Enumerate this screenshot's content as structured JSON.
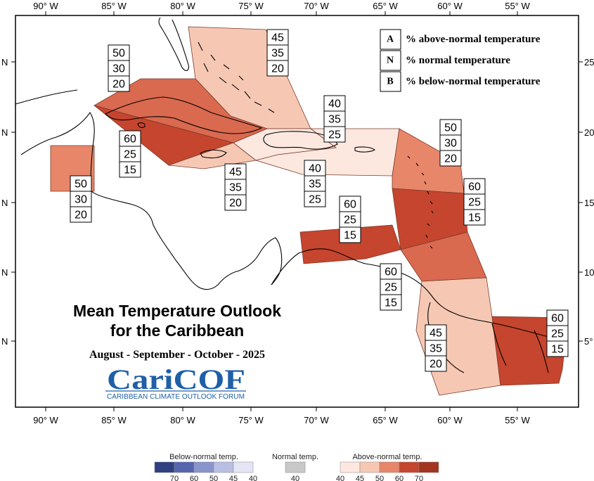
{
  "longitude_labels": [
    "90° W",
    "85° W",
    "80° W",
    "75° W",
    "70° W",
    "65° W",
    "60° W",
    "55° W"
  ],
  "latitude_labels_left": [
    "N",
    "N",
    "N",
    "N",
    "N"
  ],
  "latitude_labels_right": [
    "25",
    "20",
    "15",
    "10",
    "5°"
  ],
  "title": {
    "line1": "Mean Temperature Outlook",
    "line2": "for the Caribbean",
    "season": "August - September - October - 2025"
  },
  "logo": {
    "name": "CariCOF",
    "tagline": "CARIBBEAN CLIMATE OUTLOOK FORUM"
  },
  "key": [
    {
      "letter": "A",
      "label": "% above-normal temperature"
    },
    {
      "letter": "N",
      "label": "% normal temperature"
    },
    {
      "letter": "B",
      "label": "% below-normal temperature"
    }
  ],
  "regions": [
    {
      "id": "bahamas",
      "A": "45",
      "N": "35",
      "B": "20",
      "color": "#f6c8b4"
    },
    {
      "id": "cuba",
      "A": "50",
      "N": "30",
      "B": "20",
      "color": "#d9694f"
    },
    {
      "id": "hispaniola",
      "A": "40",
      "N": "35",
      "B": "25",
      "color": "#fde8e0"
    },
    {
      "id": "jamaica-cayman",
      "A": "60",
      "N": "25",
      "B": "15",
      "color": "#c5452e"
    },
    {
      "id": "jamaica-south",
      "A": "45",
      "N": "35",
      "B": "20",
      "color": "#f6c8b4"
    },
    {
      "id": "puerto-rico",
      "A": "40",
      "N": "35",
      "B": "25",
      "color": "#fde8e0"
    },
    {
      "id": "belize",
      "A": "50",
      "N": "30",
      "B": "20",
      "color": "#e8866a"
    },
    {
      "id": "leeward-islands",
      "A": "50",
      "N": "30",
      "B": "20",
      "color": "#e8866a"
    },
    {
      "id": "windward-islands",
      "A": "60",
      "N": "25",
      "B": "15",
      "color": "#c5452e"
    },
    {
      "id": "abc-islands",
      "A": "60",
      "N": "25",
      "B": "15",
      "color": "#c5452e"
    },
    {
      "id": "trinidad-barbados",
      "A": "60",
      "N": "25",
      "B": "15",
      "color": "#d9694f"
    },
    {
      "id": "guyana",
      "A": "45",
      "N": "35",
      "B": "20",
      "color": "#f6c8b4"
    },
    {
      "id": "suriname-fg",
      "A": "60",
      "N": "25",
      "B": "15",
      "color": "#c5452e"
    }
  ],
  "color_scale": {
    "below": {
      "title": "Below-normal temp.",
      "ticks": [
        "70",
        "60",
        "50",
        "45",
        "40"
      ],
      "colors": [
        "#2f3f80",
        "#5565ae",
        "#8a94cc",
        "#b9bfe2",
        "#e4e6f5"
      ]
    },
    "normal": {
      "title": "Normal temp.",
      "ticks": [
        "40"
      ],
      "colors": [
        "#c8c8c8"
      ]
    },
    "above": {
      "title": "Above-normal temp.",
      "ticks": [
        "40",
        "45",
        "50",
        "60",
        "70"
      ],
      "colors": [
        "#fde8e0",
        "#f6c8b4",
        "#e8866a",
        "#c5452e",
        "#a33420"
      ]
    }
  }
}
